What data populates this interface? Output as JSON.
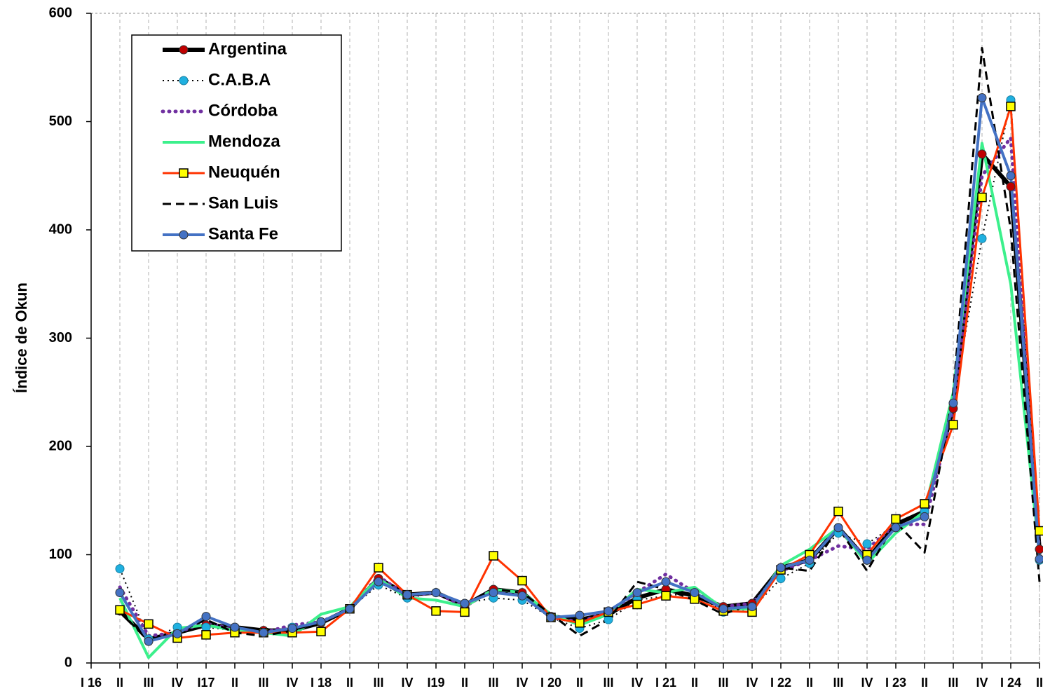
{
  "chart_data": {
    "type": "line",
    "y_label": "Índice de Okun",
    "categories": [
      "I 16",
      "II",
      "III",
      "IV",
      "I17",
      "II",
      "III",
      "IV",
      "I 18",
      "II",
      "III",
      "IV",
      "I19",
      "II",
      "III",
      "IV",
      "I 20",
      "II",
      "III",
      "IV",
      "I 21",
      "II",
      "III",
      "IV",
      "I 22",
      "II",
      "III",
      "IV",
      "I 23",
      "II",
      "III",
      "IV",
      "I 24",
      "II"
    ],
    "ylim": [
      0,
      600
    ],
    "yticks": [
      0,
      100,
      200,
      300,
      400,
      500,
      600
    ],
    "grid": "x",
    "legend": "upper left",
    "series": [
      {
        "name": "Argentina",
        "color": "#000000",
        "dash": "solid",
        "width": 6,
        "marker": "circle",
        "marker_color": "#c00000",
        "values": [
          null,
          48,
          22,
          28,
          35,
          33,
          30,
          30,
          37,
          50,
          78,
          63,
          65,
          53,
          68,
          65,
          43,
          40,
          45,
          60,
          68,
          62,
          52,
          55,
          88,
          95,
          125,
          95,
          128,
          140,
          235,
          470,
          440,
          105
        ]
      },
      {
        "name": "C.A.B.A",
        "color": "#000000",
        "dash": "dotted",
        "width": 2,
        "marker": "circle",
        "marker_color": "#1fb0e0",
        "values": [
          null,
          87,
          22,
          33,
          33,
          30,
          28,
          33,
          38,
          50,
          72,
          60,
          65,
          55,
          60,
          58,
          42,
          32,
          40,
          58,
          62,
          65,
          47,
          50,
          78,
          92,
          120,
          110,
          128,
          140,
          240,
          392,
          520,
          95
        ]
      },
      {
        "name": "Córdoba",
        "color": "#7030a0",
        "dash": "dotted-round",
        "width": 4,
        "marker": "none",
        "marker_color": "#7030a0",
        "values": [
          null,
          70,
          25,
          28,
          38,
          30,
          28,
          35,
          38,
          50,
          80,
          62,
          65,
          52,
          68,
          63,
          42,
          38,
          47,
          65,
          82,
          65,
          52,
          55,
          85,
          95,
          108,
          105,
          128,
          128,
          235,
          450,
          485,
          100
        ]
      },
      {
        "name": "Mendoza",
        "color": "#3cf08c",
        "dash": "solid",
        "width": 4,
        "marker": "none",
        "marker_color": "#3cf08c",
        "values": [
          null,
          60,
          5,
          32,
          35,
          30,
          28,
          25,
          45,
          52,
          78,
          60,
          58,
          52,
          68,
          65,
          45,
          35,
          45,
          68,
          65,
          70,
          50,
          50,
          90,
          105,
          125,
          92,
          120,
          140,
          250,
          480,
          350,
          100
        ]
      },
      {
        "name": "Neuquén",
        "color": "#ff3300",
        "dash": "solid",
        "width": 3,
        "marker": "square",
        "marker_color": "#ffff00",
        "values": [
          null,
          49,
          36,
          23,
          26,
          28,
          28,
          28,
          29,
          50,
          88,
          63,
          48,
          47,
          99,
          76,
          42,
          37,
          47,
          54,
          62,
          59,
          48,
          47,
          86,
          100,
          140,
          100,
          133,
          147,
          220,
          430,
          514,
          122
        ]
      },
      {
        "name": "San Luis",
        "color": "#000000",
        "dash": "dashed",
        "width": 3,
        "marker": "none",
        "marker_color": "#000000",
        "values": [
          null,
          48,
          20,
          28,
          40,
          28,
          25,
          30,
          38,
          50,
          75,
          62,
          65,
          55,
          68,
          65,
          45,
          25,
          40,
          75,
          68,
          58,
          45,
          55,
          88,
          85,
          125,
          85,
          130,
          102,
          250,
          568,
          400,
          75
        ]
      },
      {
        "name": "Santa Fe",
        "color": "#4472c4",
        "dash": "solid",
        "width": 4,
        "marker": "circle",
        "marker_color": "#4472c4",
        "values": [
          null,
          65,
          20,
          27,
          43,
          33,
          28,
          32,
          38,
          50,
          75,
          63,
          65,
          55,
          65,
          62,
          42,
          44,
          48,
          65,
          75,
          65,
          50,
          52,
          88,
          95,
          125,
          95,
          125,
          135,
          240,
          522,
          450,
          96
        ]
      }
    ]
  }
}
